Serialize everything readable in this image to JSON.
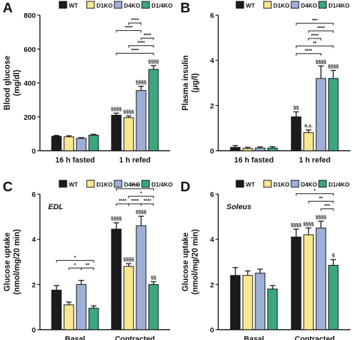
{
  "chart_data": [
    {
      "type": "bar",
      "panel": "A",
      "ylabel": "Blood glucose\n(mg/dl)",
      "ylim": [
        0,
        800
      ],
      "yticks": [
        "0",
        "200",
        "400",
        "600",
        "800"
      ],
      "categories": [
        "16 h fasted",
        "1 h refed"
      ],
      "series": [
        {
          "name": "WT",
          "color": "#1b1b1b",
          "values": [
            85,
            210
          ],
          "errors": [
            5,
            12
          ]
        },
        {
          "name": "D1KO",
          "color": "#fae890",
          "values": [
            82,
            195
          ],
          "errors": [
            6,
            10
          ]
        },
        {
          "name": "D4KO",
          "color": "#9fb0d8",
          "values": [
            73,
            355
          ],
          "errors": [
            4,
            25
          ]
        },
        {
          "name": "D1/4KO",
          "color": "#3aa781",
          "values": [
            92,
            480
          ],
          "errors": [
            5,
            22
          ]
        }
      ],
      "marks": [
        {
          "cat": 1,
          "bar": 0,
          "text": "§§§§"
        },
        {
          "cat": 1,
          "bar": 1,
          "text": "§§§§"
        },
        {
          "cat": 1,
          "bar": 2,
          "text": "§§§§"
        },
        {
          "cat": 1,
          "bar": 3,
          "text": "§§§§"
        }
      ],
      "brackets": [
        {
          "cat": 1,
          "from": 0,
          "to": 3,
          "level": 0,
          "text": "****"
        },
        {
          "cat": 1,
          "from": 1,
          "to": 3,
          "level": 1,
          "text": "****"
        },
        {
          "cat": 1,
          "from": 2,
          "to": 3,
          "level": 2,
          "text": "****"
        },
        {
          "cat": 1,
          "from": 0,
          "to": 2,
          "level": 3,
          "text": "****"
        },
        {
          "cat": 1,
          "from": 1,
          "to": 2,
          "level": 4,
          "text": "****"
        }
      ]
    },
    {
      "type": "bar",
      "panel": "B",
      "ylabel": "Plasma insulin\n(μg/l)",
      "ylim": [
        0,
        6
      ],
      "yticks": [
        "0",
        "2",
        "4",
        "6"
      ],
      "categories": [
        "16 h fasted",
        "1 h refed"
      ],
      "series": [
        {
          "name": "WT",
          "color": "#1b1b1b",
          "values": [
            0.15,
            1.5
          ],
          "errors": [
            0.08,
            0.22
          ]
        },
        {
          "name": "D1KO",
          "color": "#fae890",
          "values": [
            0.1,
            0.8
          ],
          "errors": [
            0.05,
            0.12
          ]
        },
        {
          "name": "D4KO",
          "color": "#9fb0d8",
          "values": [
            0.12,
            3.2
          ],
          "errors": [
            0.05,
            0.55
          ]
        },
        {
          "name": "D1/4KO",
          "color": "#3aa781",
          "values": [
            0.12,
            3.2
          ],
          "errors": [
            0.06,
            0.35
          ]
        }
      ],
      "marks": [
        {
          "cat": 1,
          "bar": 0,
          "text": "§§"
        },
        {
          "cat": 1,
          "bar": 1,
          "text": "n.s."
        },
        {
          "cat": 1,
          "bar": 2,
          "text": "§§§§"
        },
        {
          "cat": 1,
          "bar": 3,
          "text": "§§§§"
        }
      ],
      "brackets": [
        {
          "cat": 1,
          "from": 0,
          "to": 2,
          "level": 0,
          "text": "****"
        },
        {
          "cat": 1,
          "from": 0,
          "to": 3,
          "level": 1,
          "text": "**"
        },
        {
          "cat": 1,
          "from": 1,
          "to": 2,
          "level": 2,
          "text": "****"
        },
        {
          "cat": 1,
          "from": 1,
          "to": 3,
          "level": 3,
          "text": "****"
        },
        {
          "cat": 1,
          "from": 0,
          "to": 3,
          "level": 4,
          "text": "***"
        }
      ]
    },
    {
      "type": "bar",
      "panel": "C",
      "annotation": "EDL",
      "ylabel": "Glucose uptake\n(nmol/mg/20 min)",
      "ylim": [
        0,
        6
      ],
      "yticks": [
        "0",
        "2",
        "4",
        "6"
      ],
      "categories": [
        "Basal",
        "Contracted"
      ],
      "series": [
        {
          "name": "WT",
          "color": "#1b1b1b",
          "values": [
            1.75,
            4.45
          ],
          "errors": [
            0.2,
            0.28
          ]
        },
        {
          "name": "D1KO",
          "color": "#fae890",
          "values": [
            1.1,
            2.8
          ],
          "errors": [
            0.12,
            0.12
          ]
        },
        {
          "name": "D4KO",
          "color": "#9fb0d8",
          "values": [
            2.0,
            4.6
          ],
          "errors": [
            0.18,
            0.42
          ]
        },
        {
          "name": "D1/4KO",
          "color": "#3aa781",
          "values": [
            0.95,
            2.0
          ],
          "errors": [
            0.1,
            0.12
          ]
        }
      ],
      "marks": [
        {
          "cat": 1,
          "bar": 0,
          "text": "§§§§"
        },
        {
          "cat": 1,
          "bar": 1,
          "text": "§§§§"
        },
        {
          "cat": 1,
          "bar": 2,
          "text": "§§§§"
        },
        {
          "cat": 1,
          "bar": 3,
          "text": "§§"
        }
      ],
      "brackets": [
        {
          "cat": 0,
          "from": 0,
          "to": 3,
          "level": 1,
          "text": "*"
        },
        {
          "cat": 0,
          "from": 1,
          "to": 2,
          "level": 0,
          "text": "*"
        },
        {
          "cat": 0,
          "from": 2,
          "to": 3,
          "level": 0,
          "text": "**"
        },
        {
          "cat": 1,
          "from": 0,
          "to": 1,
          "level": 0,
          "text": "****"
        },
        {
          "cat": 1,
          "from": 1,
          "to": 2,
          "level": 0,
          "text": "****"
        },
        {
          "cat": 1,
          "from": 2,
          "to": 3,
          "level": 0,
          "text": "****"
        },
        {
          "cat": 1,
          "from": 1,
          "to": 3,
          "level": 1,
          "text": "*"
        },
        {
          "cat": 1,
          "from": 0,
          "to": 3,
          "level": 2,
          "text": "****"
        }
      ]
    },
    {
      "type": "bar",
      "panel": "D",
      "annotation": "Soleus",
      "ylabel": "Glucose uptake\n(nmol/mg/20 min)",
      "ylim": [
        0,
        6
      ],
      "yticks": [
        "0",
        "2",
        "4",
        "6"
      ],
      "categories": [
        "Basal",
        "Contracted"
      ],
      "series": [
        {
          "name": "WT",
          "color": "#1b1b1b",
          "values": [
            2.4,
            4.1
          ],
          "errors": [
            0.35,
            0.35
          ]
        },
        {
          "name": "D1KO",
          "color": "#fae890",
          "values": [
            2.4,
            4.2
          ],
          "errors": [
            0.2,
            0.3
          ]
        },
        {
          "name": "D4KO",
          "color": "#9fb0d8",
          "values": [
            2.5,
            4.5
          ],
          "errors": [
            0.18,
            0.3
          ]
        },
        {
          "name": "D1/4KO",
          "color": "#3aa781",
          "values": [
            1.8,
            2.85
          ],
          "errors": [
            0.15,
            0.25
          ]
        }
      ],
      "marks": [
        {
          "cat": 1,
          "bar": 0,
          "text": "§§§§"
        },
        {
          "cat": 1,
          "bar": 1,
          "text": "§§§§"
        },
        {
          "cat": 1,
          "bar": 2,
          "text": "§§§§"
        },
        {
          "cat": 1,
          "bar": 3,
          "text": "§"
        }
      ],
      "brackets": [
        {
          "cat": 1,
          "from": 2,
          "to": 3,
          "level": 0,
          "text": "***"
        },
        {
          "cat": 1,
          "from": 1,
          "to": 3,
          "level": 1,
          "text": "**"
        },
        {
          "cat": 1,
          "from": 0,
          "to": 3,
          "level": 2,
          "text": "*"
        }
      ]
    }
  ]
}
